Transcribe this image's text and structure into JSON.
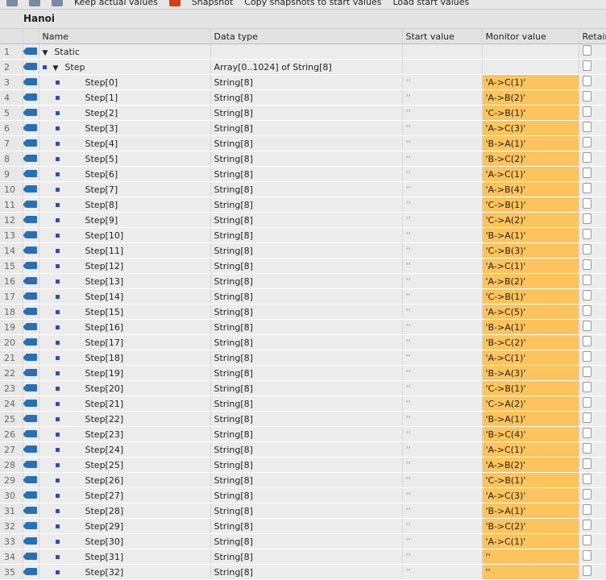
{
  "toolbar": {
    "keep": "Keep actual values",
    "snapshot": "Snapshot",
    "copy": "Copy snapshots to start values",
    "load": "Load start values"
  },
  "title": "Hanoi",
  "columns": {
    "name": "Name",
    "datatype": "Data type",
    "start": "Start value",
    "monitor": "Monitor value",
    "retain": "Retain"
  },
  "static_row": {
    "num": "1",
    "name": "Static"
  },
  "step_row": {
    "num": "2",
    "name": "Step",
    "datatype": "Array[0..1024] of String[8]"
  },
  "element_type": "String[8]",
  "element_start": "''",
  "elements": [
    {
      "name": "Step[0]",
      "value": "'A->C(1)'"
    },
    {
      "name": "Step[1]",
      "value": "'A->B(2)'"
    },
    {
      "name": "Step[2]",
      "value": "'C->B(1)'"
    },
    {
      "name": "Step[3]",
      "value": "'A->C(3)'"
    },
    {
      "name": "Step[4]",
      "value": "'B->A(1)'"
    },
    {
      "name": "Step[5]",
      "value": "'B->C(2)'"
    },
    {
      "name": "Step[6]",
      "value": "'A->C(1)'"
    },
    {
      "name": "Step[7]",
      "value": "'A->B(4)'"
    },
    {
      "name": "Step[8]",
      "value": "'C->B(1)'"
    },
    {
      "name": "Step[9]",
      "value": "'C->A(2)'"
    },
    {
      "name": "Step[10]",
      "value": "'B->A(1)'"
    },
    {
      "name": "Step[11]",
      "value": "'C->B(3)'"
    },
    {
      "name": "Step[12]",
      "value": "'A->C(1)'"
    },
    {
      "name": "Step[13]",
      "value": "'A->B(2)'"
    },
    {
      "name": "Step[14]",
      "value": "'C->B(1)'"
    },
    {
      "name": "Step[15]",
      "value": "'A->C(5)'"
    },
    {
      "name": "Step[16]",
      "value": "'B->A(1)'"
    },
    {
      "name": "Step[17]",
      "value": "'B->C(2)'"
    },
    {
      "name": "Step[18]",
      "value": "'A->C(1)'"
    },
    {
      "name": "Step[19]",
      "value": "'B->A(3)'"
    },
    {
      "name": "Step[20]",
      "value": "'C->B(1)'"
    },
    {
      "name": "Step[21]",
      "value": "'C->A(2)'"
    },
    {
      "name": "Step[22]",
      "value": "'B->A(1)'"
    },
    {
      "name": "Step[23]",
      "value": "'B->C(4)'"
    },
    {
      "name": "Step[24]",
      "value": "'A->C(1)'"
    },
    {
      "name": "Step[25]",
      "value": "'A->B(2)'"
    },
    {
      "name": "Step[26]",
      "value": "'C->B(1)'"
    },
    {
      "name": "Step[27]",
      "value": "'A->C(3)'"
    },
    {
      "name": "Step[28]",
      "value": "'B->A(1)'"
    },
    {
      "name": "Step[29]",
      "value": "'B->C(2)'"
    },
    {
      "name": "Step[30]",
      "value": "'A->C(1)'"
    },
    {
      "name": "Step[31]",
      "value": "''"
    },
    {
      "name": "Step[32]",
      "value": "''"
    }
  ],
  "colors": {
    "monitor_highlight": "#fdc35c",
    "db_icon": "#2a6fb5"
  }
}
